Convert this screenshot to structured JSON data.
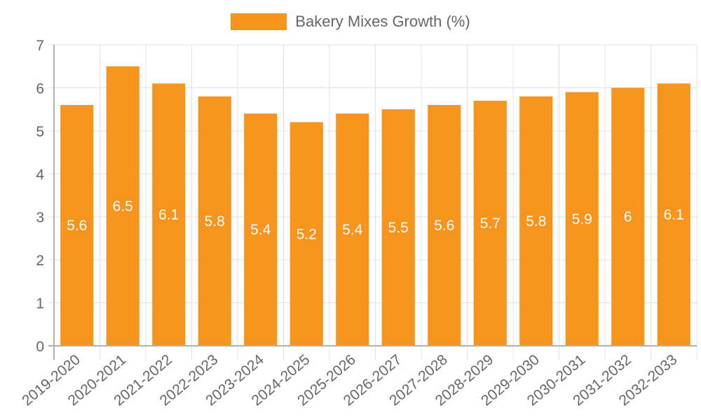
{
  "chart_data": {
    "type": "bar",
    "title": "",
    "legend": [
      "Bakery Mixes Growth (%)"
    ],
    "legend_position": "top",
    "categories": [
      "2019-2020",
      "2020-2021",
      "2021-2022",
      "2022-2023",
      "2023-2024",
      "2024-2025",
      "2025-2026",
      "2026-2027",
      "2027-2028",
      "2028-2029",
      "2029-2030",
      "2030-2031",
      "2031-2032",
      "2032-2033"
    ],
    "series": [
      {
        "name": "Bakery Mixes Growth (%)",
        "values": [
          5.6,
          6.5,
          6.1,
          5.8,
          5.4,
          5.2,
          5.4,
          5.5,
          5.6,
          5.7,
          5.8,
          5.9,
          6,
          6.1
        ],
        "color": "#F7941E"
      }
    ],
    "data_labels": [
      "5.6",
      "6.5",
      "6.1",
      "5.8",
      "5.4",
      "5.2",
      "5.4",
      "5.5",
      "5.6",
      "5.7",
      "5.8",
      "5.9",
      "6",
      "6.1"
    ],
    "xlabel": "",
    "ylabel": "",
    "ylim": [
      0,
      7
    ],
    "yticks": [
      "0",
      "1",
      "2",
      "3",
      "4",
      "5",
      "6",
      "7"
    ],
    "grid": true
  }
}
